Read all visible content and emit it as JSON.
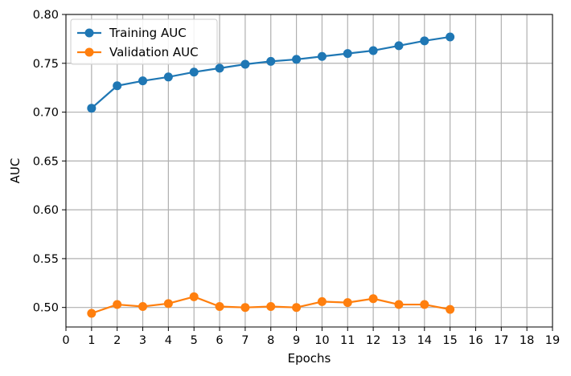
{
  "chart_data": {
    "type": "line",
    "xlabel": "Epochs",
    "ylabel": "AUC",
    "xlim": [
      0,
      19
    ],
    "ylim": [
      0.48,
      0.8
    ],
    "xticks": [
      0,
      1,
      2,
      3,
      4,
      5,
      6,
      7,
      8,
      9,
      10,
      11,
      12,
      13,
      14,
      15,
      16,
      17,
      18,
      19
    ],
    "yticks": [
      0.5,
      0.55,
      0.6,
      0.65,
      0.7,
      0.75,
      0.8
    ],
    "ytick_labels": [
      "0.50",
      "0.55",
      "0.60",
      "0.65",
      "0.70",
      "0.75",
      "0.80"
    ],
    "grid": true,
    "legend": "top-left",
    "series": [
      {
        "name": "Training AUC",
        "color": "#1f77b4",
        "x": [
          1,
          2,
          3,
          4,
          5,
          6,
          7,
          8,
          9,
          10,
          11,
          12,
          13,
          14,
          15
        ],
        "values": [
          0.704,
          0.727,
          0.732,
          0.736,
          0.741,
          0.745,
          0.749,
          0.752,
          0.754,
          0.757,
          0.76,
          0.763,
          0.768,
          0.773,
          0.777
        ]
      },
      {
        "name": "Validation AUC",
        "color": "#ff7f0e",
        "x": [
          1,
          2,
          3,
          4,
          5,
          6,
          7,
          8,
          9,
          10,
          11,
          12,
          13,
          14,
          15
        ],
        "values": [
          0.494,
          0.503,
          0.501,
          0.504,
          0.511,
          0.501,
          0.5,
          0.501,
          0.5,
          0.506,
          0.505,
          0.509,
          0.503,
          0.503,
          0.498
        ]
      }
    ]
  }
}
